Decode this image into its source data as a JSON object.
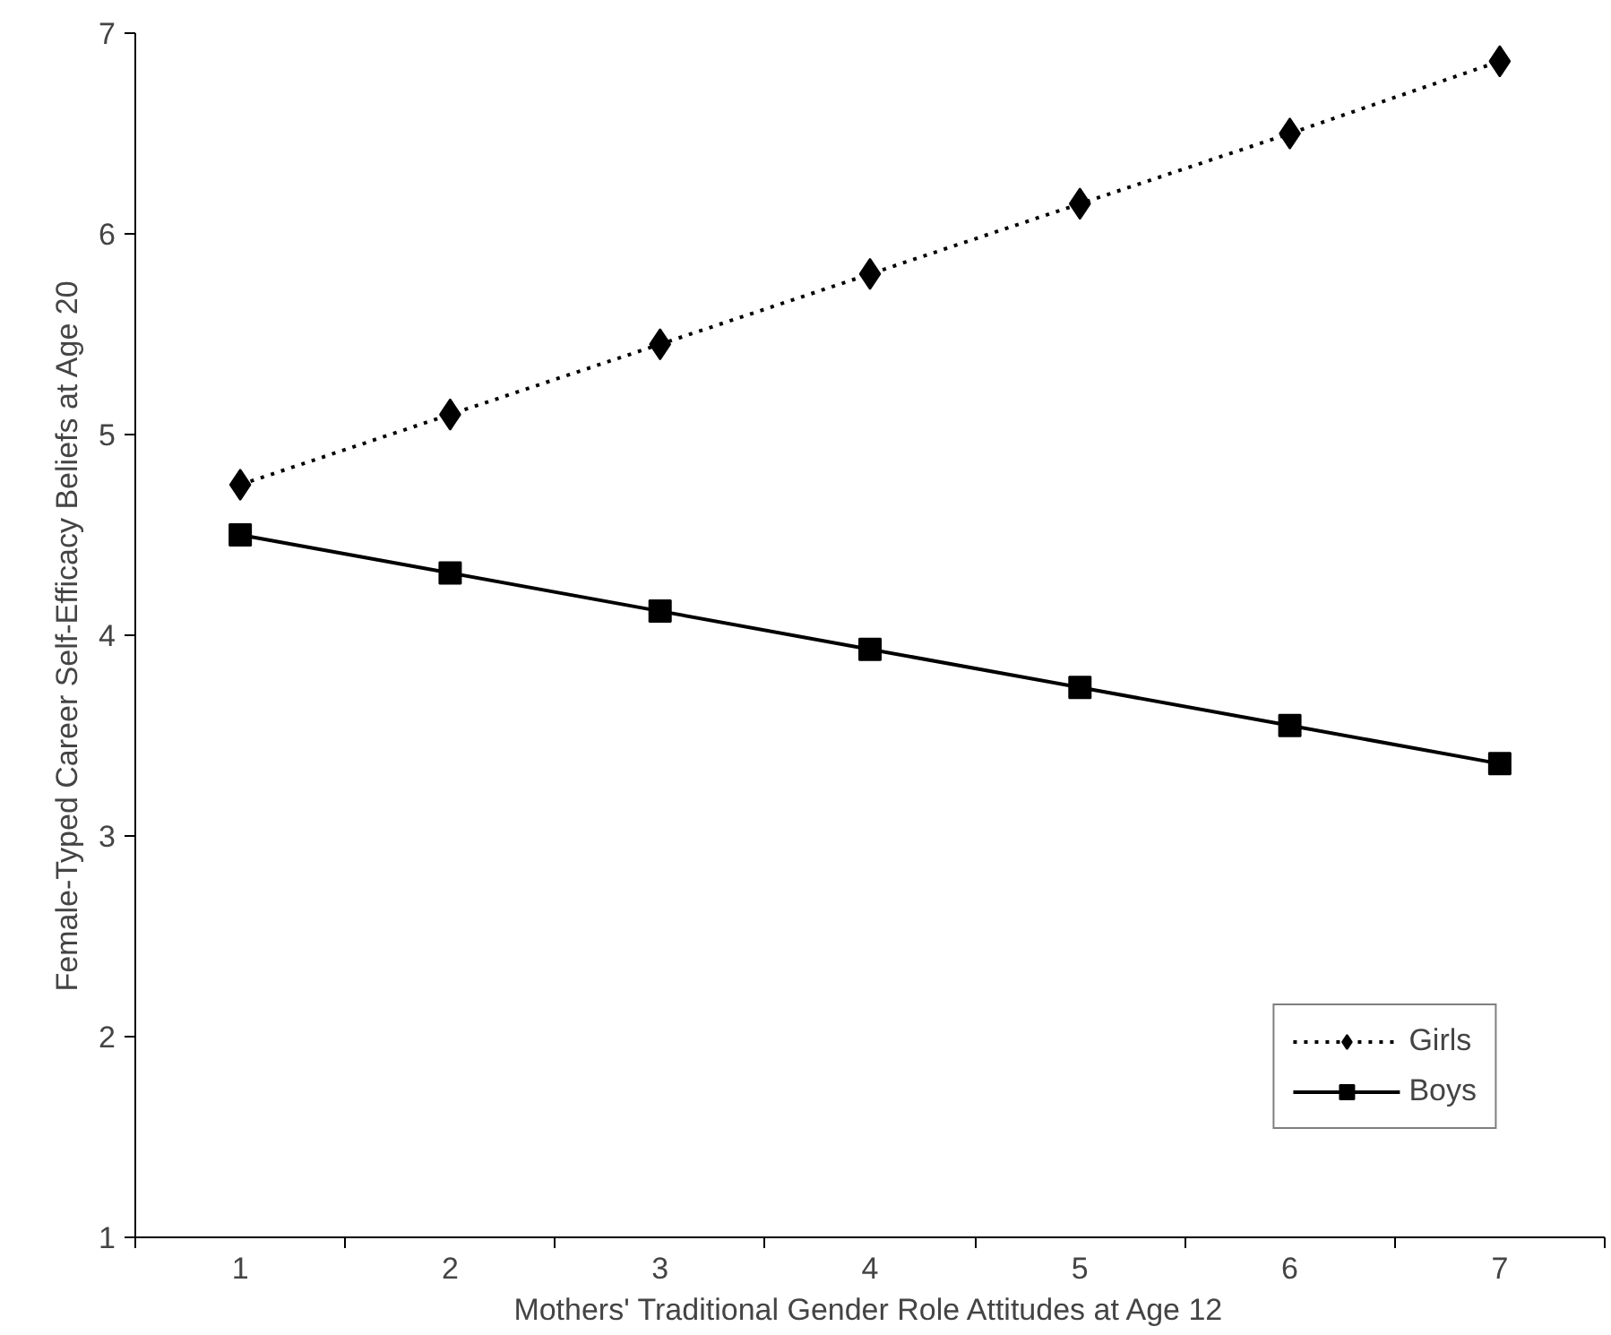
{
  "chart_data": {
    "type": "line",
    "xlabel": "Mothers' Traditional Gender Role Attitudes at Age 12",
    "ylabel": "Female-Typed Career Self-Efficacy Beliefs at Age 20",
    "categories": [
      "1",
      "2",
      "3",
      "4",
      "5",
      "6",
      "7"
    ],
    "series": [
      {
        "name": "Girls",
        "color": "#000000",
        "marker": "diamond",
        "line_style": "dotted",
        "values": [
          4.75,
          5.1,
          5.45,
          5.8,
          6.15,
          6.5,
          6.86
        ]
      },
      {
        "name": "Boys",
        "color": "#000000",
        "marker": "square",
        "line_style": "solid",
        "values": [
          4.5,
          4.31,
          4.12,
          3.93,
          3.74,
          3.55,
          3.36
        ]
      }
    ],
    "ylim": [
      1,
      7
    ],
    "yticks": [
      1,
      2,
      3,
      4,
      5,
      6,
      7
    ],
    "grid": false,
    "legend": "bottom right"
  }
}
